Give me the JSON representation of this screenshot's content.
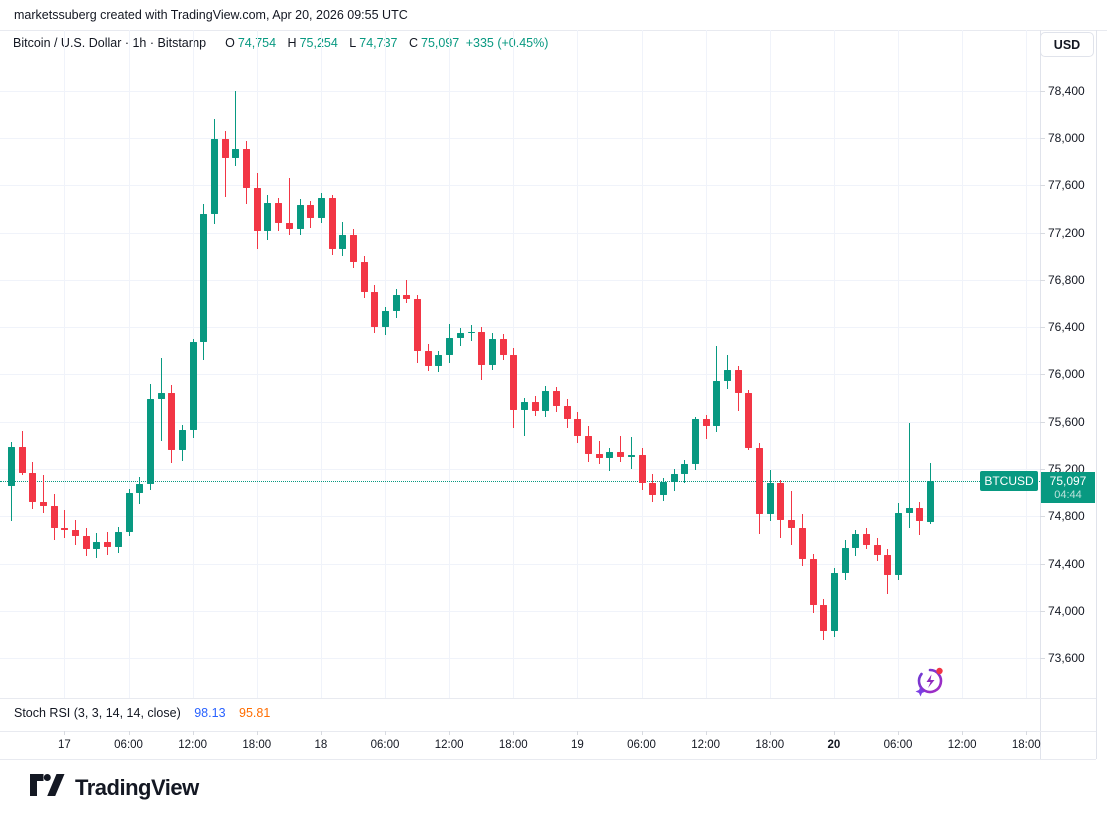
{
  "header": {
    "creator_line": "marketssuberg created with TradingView.com, Apr 20, 2026 09:55 UTC"
  },
  "legend": {
    "series_title": "Bitcoin / U.S. Dollar · 1h · Bitstamp",
    "o_label": "O",
    "o_value": "74,754",
    "h_label": "H",
    "h_value": "75,254",
    "l_label": "L",
    "l_value": "74,737",
    "c_label": "C",
    "c_value": "75,097",
    "change": "+335 (+0.45%)"
  },
  "currency_button": {
    "label": "USD"
  },
  "price_scale": {
    "symbol_badge": "BTCUSD",
    "last_price": "75,097",
    "countdown": "04:44"
  },
  "indicator": {
    "title": "Stoch RSI (3, 3, 14, 14, close)",
    "k_value": "98.13",
    "d_value": "95.81"
  },
  "footer": {
    "logo_text": "TradingView"
  },
  "icons": {
    "spark": "spark-ai-icon",
    "logo": "tradingview-logo-icon"
  },
  "colors": {
    "up": "#089981",
    "down": "#F23645",
    "stoch_k": "#2962FF",
    "stoch_d": "#FF6D00",
    "grid": "#F0F3FA",
    "text": "#131722",
    "badge": "#089981"
  },
  "chart_data": {
    "type": "candlestick",
    "symbol": "BTCUSD",
    "exchange": "Bitstamp",
    "interval": "1h",
    "unit": "USD",
    "title": "Bitcoin / U.S. Dollar",
    "start_time": "Apr 16 19:00 UTC",
    "end_time": "Apr 20 09:00 UTC",
    "current_close": 75097,
    "change": 335,
    "change_pct": 0.45,
    "grid": true,
    "price_axis": {
      "min": 73270,
      "max": 78690,
      "tick_step": 400,
      "tick_values": [
        78400,
        78000,
        77600,
        77200,
        76800,
        76400,
        76000,
        75600,
        75200,
        74800,
        74400,
        74000,
        73600
      ],
      "tick_labels": [
        "78,400",
        "78,000",
        "77,600",
        "77,200",
        "76,800",
        "76,400",
        "76,000",
        "75,600",
        "75,200",
        "74,800",
        "74,400",
        "74,000",
        "73,600"
      ]
    },
    "time_axis": {
      "labels": [
        "17",
        "06:00",
        "12:00",
        "18:00",
        "18",
        "06:00",
        "12:00",
        "18:00",
        "19",
        "06:00",
        "12:00",
        "18:00",
        "20",
        "06:00",
        "12:00",
        "18:00"
      ],
      "bold_index": 12
    },
    "indicator_values": {
      "stoch_rsi_k": 98.13,
      "stoch_rsi_d": 95.81
    },
    "candles_format": [
      "open",
      "high",
      "low",
      "close"
    ],
    "candles": [
      [
        75060,
        75430,
        74760,
        75390
      ],
      [
        75390,
        75520,
        75150,
        75170
      ],
      [
        75170,
        75260,
        74860,
        74920
      ],
      [
        74920,
        75150,
        74830,
        74890
      ],
      [
        74890,
        74990,
        74600,
        74700
      ],
      [
        74700,
        74850,
        74620,
        74680
      ],
      [
        74680,
        74770,
        74560,
        74630
      ],
      [
        74630,
        74700,
        74460,
        74520
      ],
      [
        74520,
        74660,
        74450,
        74580
      ],
      [
        74580,
        74670,
        74470,
        74540
      ],
      [
        74540,
        74710,
        74490,
        74670
      ],
      [
        74670,
        75030,
        74630,
        75000
      ],
      [
        75000,
        75130,
        74900,
        75070
      ],
      [
        75070,
        75920,
        75020,
        75790
      ],
      [
        75790,
        76140,
        75440,
        75840
      ],
      [
        75840,
        75910,
        75250,
        75360
      ],
      [
        75360,
        75570,
        75270,
        75530
      ],
      [
        75530,
        76300,
        75460,
        76270
      ],
      [
        76270,
        77440,
        76120,
        77360
      ],
      [
        77360,
        78160,
        77270,
        77990
      ],
      [
        77990,
        78060,
        77500,
        77830
      ],
      [
        77830,
        78400,
        77760,
        77910
      ],
      [
        77910,
        77970,
        77440,
        77580
      ],
      [
        77580,
        77700,
        77060,
        77210
      ],
      [
        77210,
        77520,
        77140,
        77450
      ],
      [
        77450,
        77490,
        77210,
        77280
      ],
      [
        77280,
        77660,
        77180,
        77230
      ],
      [
        77230,
        77480,
        77180,
        77430
      ],
      [
        77430,
        77470,
        77240,
        77320
      ],
      [
        77320,
        77530,
        77280,
        77490
      ],
      [
        77490,
        77520,
        77010,
        77060
      ],
      [
        77060,
        77290,
        77000,
        77180
      ],
      [
        77180,
        77230,
        76900,
        76950
      ],
      [
        76950,
        77000,
        76650,
        76700
      ],
      [
        76700,
        76760,
        76350,
        76400
      ],
      [
        76400,
        76570,
        76330,
        76540
      ],
      [
        76540,
        76720,
        76480,
        76670
      ],
      [
        76670,
        76800,
        76600,
        76640
      ],
      [
        76640,
        76670,
        76100,
        76200
      ],
      [
        76200,
        76260,
        76030,
        76070
      ],
      [
        76070,
        76200,
        76020,
        76160
      ],
      [
        76160,
        76430,
        76100,
        76310
      ],
      [
        76310,
        76390,
        76240,
        76350
      ],
      [
        76350,
        76420,
        76280,
        76360
      ],
      [
        76360,
        76400,
        75950,
        76080
      ],
      [
        76080,
        76350,
        76040,
        76300
      ],
      [
        76300,
        76340,
        76120,
        76160
      ],
      [
        76160,
        76220,
        75550,
        75700
      ],
      [
        75700,
        75800,
        75480,
        75770
      ],
      [
        75770,
        75820,
        75650,
        75690
      ],
      [
        75690,
        75900,
        75640,
        75860
      ],
      [
        75860,
        75890,
        75680,
        75730
      ],
      [
        75730,
        75790,
        75550,
        75620
      ],
      [
        75620,
        75680,
        75420,
        75480
      ],
      [
        75480,
        75560,
        75260,
        75330
      ],
      [
        75330,
        75440,
        75240,
        75290
      ],
      [
        75290,
        75380,
        75180,
        75340
      ],
      [
        75340,
        75480,
        75260,
        75300
      ],
      [
        75300,
        75470,
        75200,
        75320
      ],
      [
        75320,
        75380,
        75020,
        75080
      ],
      [
        75080,
        75160,
        74920,
        74980
      ],
      [
        74980,
        75120,
        74930,
        75090
      ],
      [
        75090,
        75200,
        75010,
        75160
      ],
      [
        75160,
        75280,
        75080,
        75240
      ],
      [
        75240,
        75640,
        75190,
        75620
      ],
      [
        75620,
        75660,
        75450,
        75560
      ],
      [
        75560,
        76240,
        75510,
        75940
      ],
      [
        75940,
        76160,
        75880,
        76040
      ],
      [
        76040,
        76070,
        75690,
        75840
      ],
      [
        75840,
        75870,
        75360,
        75380
      ],
      [
        75380,
        75420,
        74650,
        74820
      ],
      [
        74820,
        75190,
        74760,
        75080
      ],
      [
        75080,
        75110,
        74620,
        74770
      ],
      [
        74770,
        75010,
        74560,
        74700
      ],
      [
        74700,
        74820,
        74380,
        74440
      ],
      [
        74440,
        74480,
        73980,
        74050
      ],
      [
        74050,
        74100,
        73750,
        73830
      ],
      [
        73830,
        74360,
        73780,
        74320
      ],
      [
        74320,
        74600,
        74260,
        74530
      ],
      [
        74530,
        74680,
        74460,
        74650
      ],
      [
        74650,
        74700,
        74520,
        74560
      ],
      [
        74560,
        74620,
        74420,
        74470
      ],
      [
        74470,
        74520,
        74140,
        74300
      ],
      [
        74300,
        74910,
        74260,
        74830
      ],
      [
        74830,
        75590,
        74700,
        74870
      ],
      [
        74870,
        74920,
        74640,
        74760
      ],
      [
        74754,
        75254,
        74737,
        75097
      ]
    ]
  }
}
